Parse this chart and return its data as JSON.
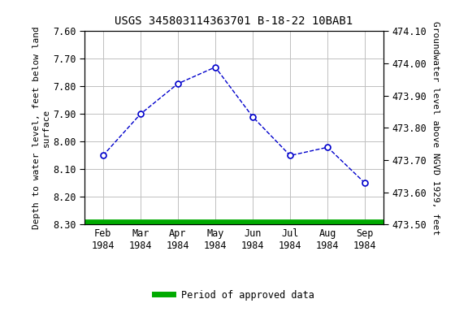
{
  "title": "USGS 345803114363701 B-18-22 10BAB1",
  "x_labels": [
    "Feb\n1984",
    "Mar\n1984",
    "Apr\n1984",
    "May\n1984",
    "Jun\n1984",
    "Jul\n1984",
    "Aug\n1984",
    "Sep\n1984"
  ],
  "x_tick_positions": [
    0,
    1,
    2,
    3,
    4,
    5,
    6,
    7
  ],
  "y_depth": [
    8.05,
    7.9,
    7.79,
    7.73,
    7.91,
    8.05,
    8.02,
    8.15
  ],
  "x_numeric": [
    0,
    1,
    2,
    3,
    4,
    5,
    6,
    7
  ],
  "ylim_left": [
    8.3,
    7.6
  ],
  "ylim_right_bottom": 473.5,
  "ylim_right_top": 474.1,
  "ylabel_left": "Depth to water level, feet below land\nsurface",
  "ylabel_right": "Groundwater level above NGVD 1929, feet",
  "left_ticks": [
    7.6,
    7.7,
    7.8,
    7.9,
    8.0,
    8.1,
    8.2,
    8.3
  ],
  "right_ticks": [
    474.1,
    474.0,
    473.9,
    473.8,
    473.7,
    473.6,
    473.5
  ],
  "line_color": "#0000cc",
  "marker_facecolor": "#ffffff",
  "marker_edgecolor": "#0000cc",
  "green_bar_color": "#00aa00",
  "background_color": "#ffffff",
  "grid_color": "#c0c0c0",
  "legend_label": "Period of approved data",
  "title_fontsize": 10,
  "label_fontsize": 8,
  "tick_fontsize": 8.5
}
